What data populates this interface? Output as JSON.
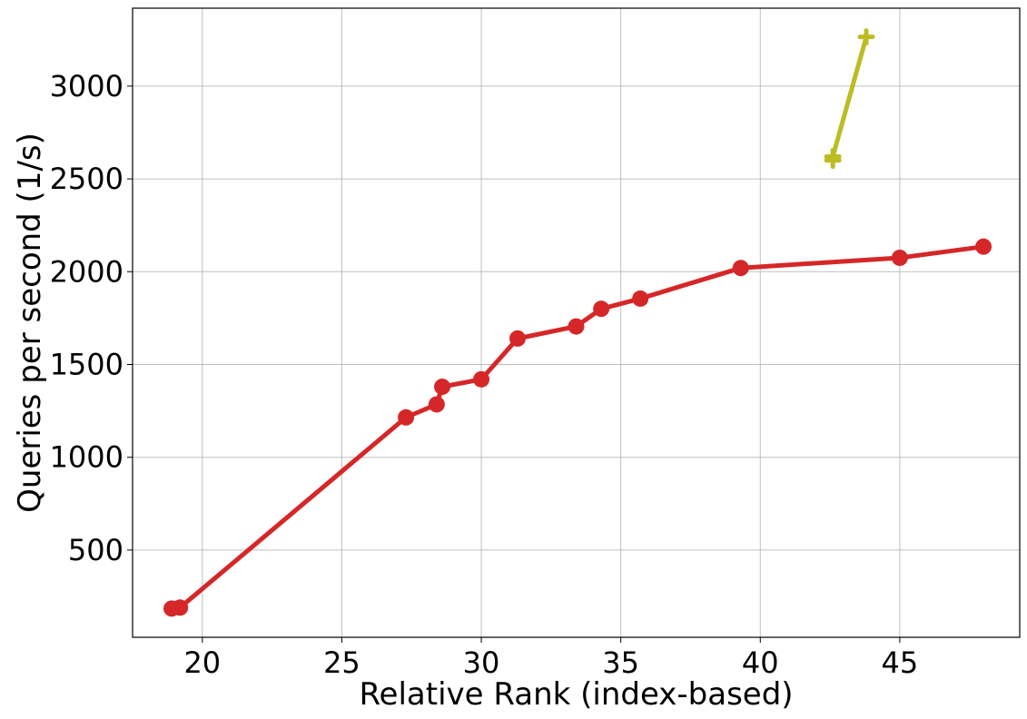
{
  "chart_data": {
    "type": "line",
    "title": "",
    "xlabel": "Relative Rank (index-based)",
    "ylabel": "Queries per second (1/s)",
    "xlim": [
      17.5,
      49.3
    ],
    "ylim": [
      30,
      3420
    ],
    "xticks": [
      20,
      25,
      30,
      35,
      40,
      45
    ],
    "yticks": [
      500,
      1000,
      1500,
      2000,
      2500,
      3000
    ],
    "grid": true,
    "legend": "none",
    "series": [
      {
        "color": "#d62728",
        "marker": "circle",
        "x": [
          18.9,
          19.2,
          27.3,
          28.4,
          28.6,
          30.0,
          31.3,
          33.4,
          34.3,
          35.7,
          39.3,
          45.0,
          48.0
        ],
        "y": [
          185,
          190,
          1215,
          1285,
          1380,
          1420,
          1640,
          1705,
          1800,
          1855,
          2020,
          2075,
          2135
        ]
      },
      {
        "color": "#bcbd22",
        "marker": "plus",
        "x": [
          42.6,
          42.6,
          43.8
        ],
        "y": [
          2600,
          2620,
          3265
        ]
      }
    ]
  }
}
